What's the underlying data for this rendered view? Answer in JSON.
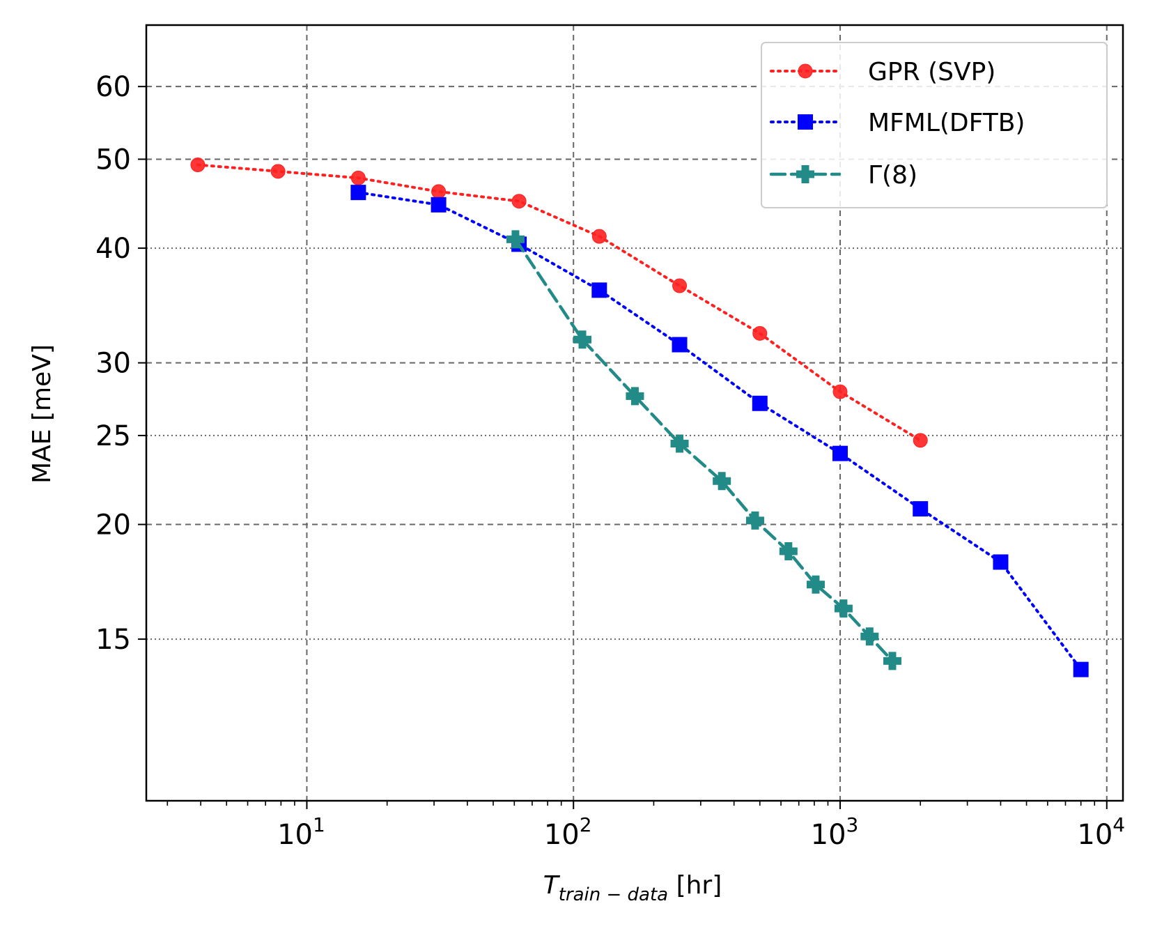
{
  "chart_data": {
    "type": "line",
    "title": "",
    "xlabel": {
      "base": "T",
      "subscript": "train − data",
      "unit": " [hr]"
    },
    "ylabel": "MAE [meV]",
    "xscale": "log",
    "yscale": "log",
    "xlim": [
      2.5,
      11500
    ],
    "ylim": [
      10.0,
      70.0
    ],
    "grid": {
      "major": "dashed",
      "minor_y": "dotted",
      "minor_y_values": [
        15,
        25,
        40
      ]
    },
    "x_ticks": [
      {
        "value": 10,
        "base": "10",
        "exp": "1"
      },
      {
        "value": 100,
        "base": "10",
        "exp": "2"
      },
      {
        "value": 1000,
        "base": "10",
        "exp": "3"
      },
      {
        "value": 10000,
        "base": "10",
        "exp": "4"
      }
    ],
    "y_ticks": [
      {
        "value": 60,
        "label": "60",
        "grid": "dashed"
      },
      {
        "value": 50,
        "label": "50",
        "grid": "dashed"
      },
      {
        "value": 40,
        "label": "40",
        "grid": "dotted"
      },
      {
        "value": 30,
        "label": "30",
        "grid": "dashed"
      },
      {
        "value": 25,
        "label": "25",
        "grid": "dotted"
      },
      {
        "value": 20,
        "label": "20",
        "grid": "dashed"
      },
      {
        "value": 15,
        "label": "15",
        "grid": "dotted"
      }
    ],
    "legend_position": "top-right",
    "series": [
      {
        "name": "GPR (SVP)",
        "color": "#ff2020",
        "line_style": "dotted",
        "marker": "circle",
        "x": [
          3.9,
          7.8,
          15.6,
          31.2,
          62.5,
          125,
          250,
          500,
          1000,
          2000
        ],
        "y": [
          49.3,
          48.5,
          47.7,
          46.1,
          45.0,
          41.2,
          36.4,
          32.3,
          27.9,
          24.7
        ]
      },
      {
        "name": "MFML(DFTB)",
        "color": "#0000ff",
        "line_style": "dotted",
        "marker": "square",
        "x": [
          15.6,
          31.2,
          62.5,
          125,
          250,
          500,
          1000,
          2000,
          4000,
          8000
        ],
        "y": [
          46.0,
          44.6,
          40.4,
          36.0,
          31.4,
          27.1,
          23.9,
          20.8,
          18.2,
          13.9
        ]
      },
      {
        "name": "Γ(8)",
        "color": "#228b87",
        "line_style": "dashed",
        "marker": "plus",
        "x": [
          60.6,
          108,
          170,
          250,
          360,
          480,
          640,
          810,
          1030,
          1290,
          1570
        ],
        "y": [
          40.9,
          31.8,
          27.6,
          24.5,
          22.3,
          20.2,
          18.7,
          17.2,
          16.2,
          15.1,
          14.2
        ]
      }
    ]
  }
}
